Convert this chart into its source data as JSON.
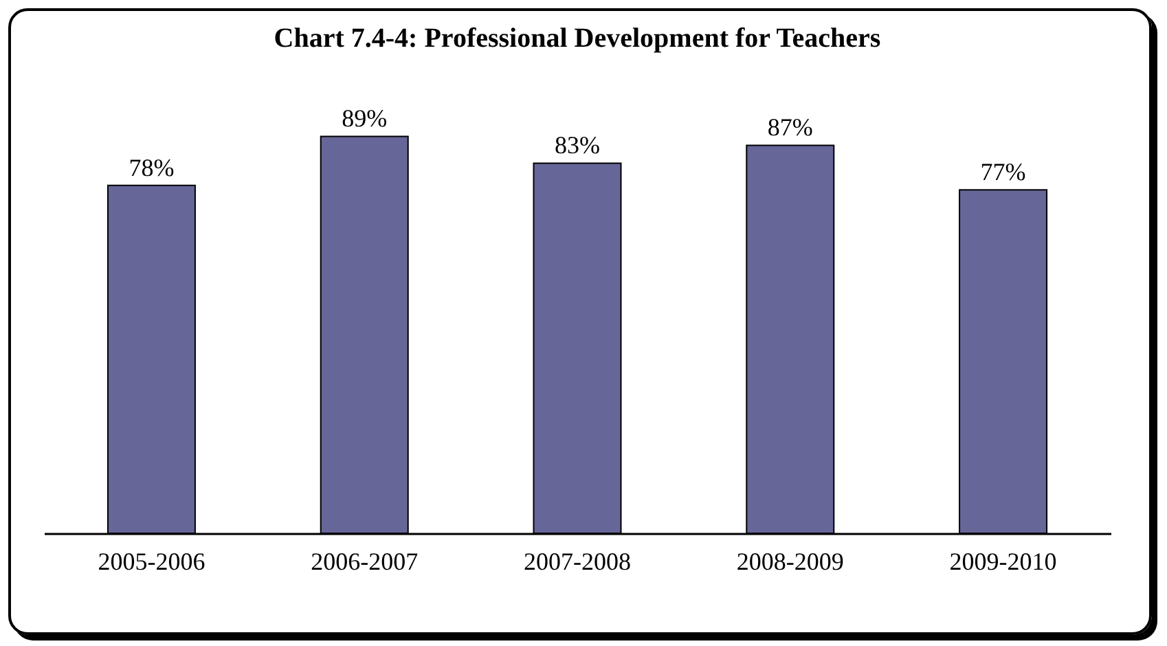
{
  "chart_data": {
    "type": "bar",
    "title": "Chart 7.4-4:  Professional Development for Teachers",
    "categories": [
      "2005-2006",
      "2006-2007",
      "2007-2008",
      "2008-2009",
      "2009-2010"
    ],
    "values": [
      78,
      89,
      83,
      87,
      77
    ],
    "value_labels": [
      "78%",
      "89%",
      "83%",
      "87%",
      "77%"
    ],
    "color": "#666699"
  }
}
